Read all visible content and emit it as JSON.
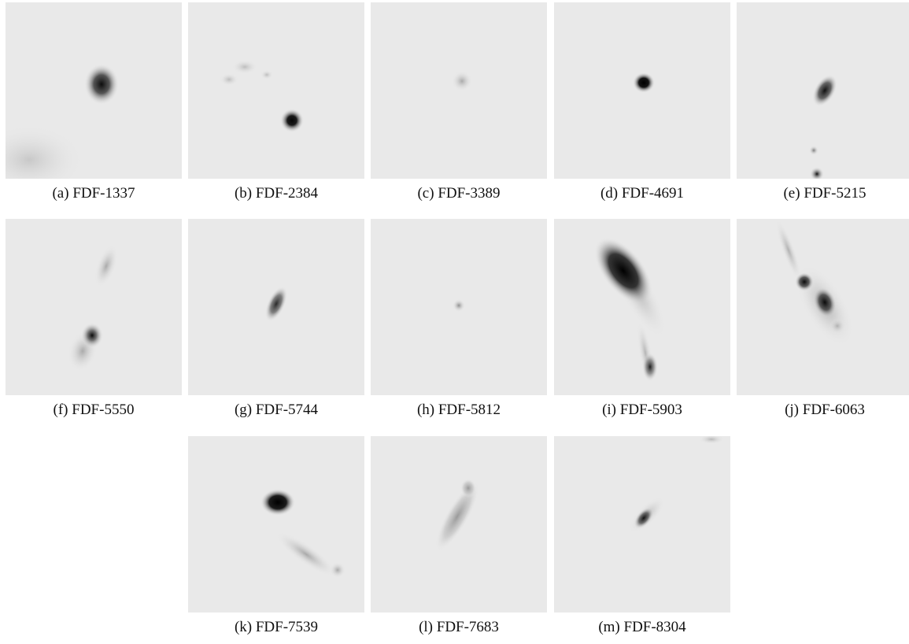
{
  "figure": {
    "panels": [
      {
        "caption": "(a) FDF-1337"
      },
      {
        "caption": "(b) FDF-2384"
      },
      {
        "caption": "(c) FDF-3389"
      },
      {
        "caption": "(d) FDF-4691"
      },
      {
        "caption": "(e) FDF-5215"
      },
      {
        "caption": "(f) FDF-5550"
      },
      {
        "caption": "(g) FDF-5744"
      },
      {
        "caption": "(h) FDF-5812"
      },
      {
        "caption": "(i) FDF-5903"
      },
      {
        "caption": "(j) FDF-6063"
      },
      {
        "caption": "(k) FDF-7539"
      },
      {
        "caption": "(l) FDF-7683"
      },
      {
        "caption": "(m) FDF-8304"
      }
    ]
  }
}
